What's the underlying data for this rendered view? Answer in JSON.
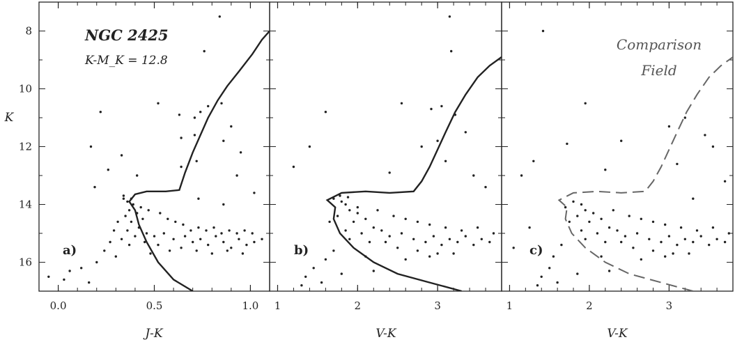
{
  "chart_data": [
    {
      "type": "scatter",
      "panel_label": "a)",
      "title": "NGC 2425",
      "subtitle": "K-M_K = 12.8",
      "xlabel": "J-K",
      "ylabel": "K",
      "xlim": [
        -0.1,
        1.1
      ],
      "ylim": [
        17,
        7
      ],
      "x_ticks": [
        "0.0",
        "0.5",
        "1.0"
      ],
      "x_tick_values": [
        0.0,
        0.5,
        1.0
      ],
      "y_ticks": [
        "8",
        "10",
        "12",
        "14",
        "16"
      ],
      "y_tick_values": [
        8,
        10,
        12,
        14,
        16
      ],
      "isochrone_style": "solid",
      "isochrone": [
        [
          0.7,
          17.0
        ],
        [
          0.6,
          16.6
        ],
        [
          0.52,
          16.0
        ],
        [
          0.46,
          15.3
        ],
        [
          0.42,
          14.7
        ],
        [
          0.4,
          14.2
        ],
        [
          0.37,
          13.9
        ],
        [
          0.4,
          13.65
        ],
        [
          0.46,
          13.55
        ],
        [
          0.56,
          13.55
        ],
        [
          0.63,
          13.5
        ],
        [
          0.66,
          12.9
        ],
        [
          0.7,
          12.2
        ],
        [
          0.74,
          11.6
        ],
        [
          0.78,
          11.0
        ],
        [
          0.83,
          10.4
        ],
        [
          0.88,
          9.9
        ],
        [
          0.94,
          9.4
        ],
        [
          1.01,
          8.8
        ],
        [
          1.06,
          8.3
        ],
        [
          1.1,
          8.0
        ]
      ],
      "points": [
        [
          0.84,
          7.5
        ],
        [
          0.76,
          8.7
        ],
        [
          0.52,
          10.5
        ],
        [
          0.22,
          10.8
        ],
        [
          0.63,
          10.9
        ],
        [
          0.71,
          11.0
        ],
        [
          0.74,
          10.8
        ],
        [
          0.78,
          10.6
        ],
        [
          0.85,
          10.5
        ],
        [
          0.9,
          11.3
        ],
        [
          0.64,
          11.7
        ],
        [
          0.71,
          11.6
        ],
        [
          0.86,
          11.8
        ],
        [
          0.17,
          12.0
        ],
        [
          0.33,
          12.3
        ],
        [
          0.72,
          12.5
        ],
        [
          0.95,
          12.2
        ],
        [
          0.26,
          12.8
        ],
        [
          0.41,
          13.0
        ],
        [
          0.64,
          12.7
        ],
        [
          0.93,
          13.0
        ],
        [
          0.73,
          13.8
        ],
        [
          0.86,
          14.0
        ],
        [
          0.19,
          13.4
        ],
        [
          1.02,
          13.6
        ],
        [
          0.34,
          13.8
        ],
        [
          0.36,
          13.9
        ],
        [
          0.39,
          14.0
        ],
        [
          0.37,
          14.2
        ],
        [
          0.41,
          14.3
        ],
        [
          0.35,
          14.4
        ],
        [
          0.44,
          14.5
        ],
        [
          0.31,
          14.6
        ],
        [
          0.38,
          14.6
        ],
        [
          0.42,
          14.8
        ],
        [
          0.36,
          14.9
        ],
        [
          0.29,
          14.9
        ],
        [
          0.46,
          15.0
        ],
        [
          0.4,
          15.1
        ],
        [
          0.5,
          15.1
        ],
        [
          0.33,
          15.2
        ],
        [
          0.55,
          15.0
        ],
        [
          0.27,
          15.3
        ],
        [
          0.45,
          15.3
        ],
        [
          0.6,
          15.2
        ],
        [
          0.37,
          15.4
        ],
        [
          0.52,
          15.4
        ],
        [
          0.66,
          15.1
        ],
        [
          0.7,
          15.3
        ],
        [
          0.74,
          15.2
        ],
        [
          0.78,
          15.4
        ],
        [
          0.82,
          15.1
        ],
        [
          0.86,
          15.3
        ],
        [
          0.9,
          15.5
        ],
        [
          0.94,
          15.2
        ],
        [
          0.98,
          15.4
        ],
        [
          1.02,
          15.3
        ],
        [
          1.06,
          15.2
        ],
        [
          0.24,
          15.6
        ],
        [
          0.3,
          15.8
        ],
        [
          0.48,
          15.7
        ],
        [
          0.58,
          15.6
        ],
        [
          0.64,
          15.5
        ],
        [
          0.72,
          15.6
        ],
        [
          0.8,
          15.7
        ],
        [
          0.88,
          15.6
        ],
        [
          0.96,
          15.7
        ],
        [
          0.2,
          16.0
        ],
        [
          0.12,
          16.2
        ],
        [
          0.06,
          16.3
        ],
        [
          0.03,
          16.6
        ],
        [
          -0.05,
          16.5
        ],
        [
          0.16,
          16.7
        ],
        [
          0.43,
          14.1
        ],
        [
          0.47,
          14.2
        ],
        [
          0.53,
          14.3
        ],
        [
          0.57,
          14.5
        ],
        [
          0.61,
          14.6
        ],
        [
          0.65,
          14.7
        ],
        [
          0.69,
          14.9
        ],
        [
          0.73,
          14.8
        ],
        [
          0.77,
          14.9
        ],
        [
          0.81,
          14.8
        ],
        [
          0.85,
          15.0
        ],
        [
          0.89,
          14.9
        ],
        [
          0.93,
          15.0
        ],
        [
          0.97,
          14.9
        ],
        [
          1.01,
          15.0
        ],
        [
          0.34,
          13.7
        ],
        [
          0.38,
          13.8
        ]
      ]
    },
    {
      "type": "scatter",
      "panel_label": "b)",
      "xlabel": "V-K",
      "xlim": [
        0.9,
        3.8
      ],
      "ylim": [
        17,
        7
      ],
      "x_ticks": [
        "1",
        "2",
        "3"
      ],
      "x_tick_values": [
        1,
        2,
        3
      ],
      "isochrone_style": "solid",
      "isochrone": [
        [
          3.3,
          17.0
        ],
        [
          2.9,
          16.7
        ],
        [
          2.5,
          16.4
        ],
        [
          2.2,
          16.0
        ],
        [
          1.95,
          15.5
        ],
        [
          1.78,
          15.0
        ],
        [
          1.7,
          14.5
        ],
        [
          1.72,
          14.1
        ],
        [
          1.62,
          13.85
        ],
        [
          1.8,
          13.6
        ],
        [
          2.1,
          13.55
        ],
        [
          2.4,
          13.6
        ],
        [
          2.7,
          13.55
        ],
        [
          2.8,
          13.2
        ],
        [
          2.9,
          12.7
        ],
        [
          3.0,
          12.1
        ],
        [
          3.1,
          11.5
        ],
        [
          3.22,
          10.8
        ],
        [
          3.35,
          10.2
        ],
        [
          3.5,
          9.6
        ],
        [
          3.65,
          9.2
        ],
        [
          3.8,
          8.9
        ]
      ],
      "points": [
        [
          3.15,
          7.5
        ],
        [
          3.17,
          8.7
        ],
        [
          2.55,
          10.5
        ],
        [
          1.6,
          10.8
        ],
        [
          2.92,
          10.7
        ],
        [
          3.05,
          10.6
        ],
        [
          3.22,
          10.9
        ],
        [
          3.35,
          11.5
        ],
        [
          3.0,
          11.8
        ],
        [
          2.8,
          12.0
        ],
        [
          1.4,
          12.0
        ],
        [
          1.2,
          12.7
        ],
        [
          3.1,
          12.5
        ],
        [
          3.45,
          13.0
        ],
        [
          2.4,
          12.9
        ],
        [
          3.6,
          13.4
        ],
        [
          1.7,
          13.8
        ],
        [
          1.8,
          13.9
        ],
        [
          1.85,
          14.0
        ],
        [
          1.9,
          14.2
        ],
        [
          2.0,
          14.3
        ],
        [
          1.75,
          14.4
        ],
        [
          2.1,
          14.5
        ],
        [
          1.65,
          14.6
        ],
        [
          1.95,
          14.6
        ],
        [
          2.2,
          14.8
        ],
        [
          1.85,
          14.9
        ],
        [
          2.3,
          14.9
        ],
        [
          2.05,
          15.0
        ],
        [
          2.4,
          15.1
        ],
        [
          2.55,
          15.0
        ],
        [
          2.7,
          15.2
        ],
        [
          1.9,
          15.2
        ],
        [
          2.15,
          15.3
        ],
        [
          2.35,
          15.3
        ],
        [
          2.85,
          15.3
        ],
        [
          2.95,
          15.1
        ],
        [
          3.05,
          15.4
        ],
        [
          3.15,
          15.2
        ],
        [
          3.25,
          15.3
        ],
        [
          3.35,
          15.1
        ],
        [
          3.45,
          15.4
        ],
        [
          3.55,
          15.2
        ],
        [
          3.65,
          15.3
        ],
        [
          2.5,
          15.5
        ],
        [
          2.75,
          15.6
        ],
        [
          3.0,
          15.7
        ],
        [
          1.7,
          15.6
        ],
        [
          1.6,
          15.9
        ],
        [
          2.1,
          15.8
        ],
        [
          2.6,
          15.9
        ],
        [
          2.9,
          15.8
        ],
        [
          3.2,
          15.7
        ],
        [
          1.45,
          16.2
        ],
        [
          1.35,
          16.5
        ],
        [
          1.3,
          16.8
        ],
        [
          1.55,
          16.7
        ],
        [
          1.8,
          16.4
        ],
        [
          2.2,
          16.3
        ],
        [
          2.0,
          14.1
        ],
        [
          2.25,
          14.2
        ],
        [
          2.45,
          14.4
        ],
        [
          2.6,
          14.5
        ],
        [
          2.75,
          14.6
        ],
        [
          2.9,
          14.7
        ],
        [
          3.1,
          14.8
        ],
        [
          3.3,
          14.9
        ],
        [
          3.5,
          14.8
        ],
        [
          3.7,
          15.0
        ],
        [
          1.78,
          13.7
        ],
        [
          1.88,
          13.75
        ]
      ]
    },
    {
      "type": "scatter",
      "panel_label": "c)",
      "title": "Comparison Field",
      "title_lines": [
        "Comparison",
        "Field"
      ],
      "xlabel": "V-K",
      "xlim": [
        0.9,
        3.8
      ],
      "ylim": [
        17,
        7
      ],
      "x_ticks": [
        "1",
        "2",
        "3"
      ],
      "x_tick_values": [
        1,
        2,
        3
      ],
      "isochrone_style": "dashed",
      "isochrone": [
        [
          3.3,
          17.0
        ],
        [
          2.9,
          16.7
        ],
        [
          2.5,
          16.4
        ],
        [
          2.2,
          16.0
        ],
        [
          1.95,
          15.5
        ],
        [
          1.78,
          15.0
        ],
        [
          1.7,
          14.5
        ],
        [
          1.72,
          14.1
        ],
        [
          1.62,
          13.85
        ],
        [
          1.8,
          13.6
        ],
        [
          2.1,
          13.55
        ],
        [
          2.4,
          13.6
        ],
        [
          2.7,
          13.55
        ],
        [
          2.8,
          13.2
        ],
        [
          2.9,
          12.7
        ],
        [
          3.0,
          12.1
        ],
        [
          3.1,
          11.5
        ],
        [
          3.22,
          10.8
        ],
        [
          3.35,
          10.2
        ],
        [
          3.5,
          9.6
        ],
        [
          3.65,
          9.2
        ],
        [
          3.8,
          8.9
        ]
      ],
      "points": [
        [
          1.42,
          8.0
        ],
        [
          1.95,
          10.5
        ],
        [
          1.72,
          11.9
        ],
        [
          2.4,
          11.8
        ],
        [
          3.0,
          11.3
        ],
        [
          3.2,
          11.0
        ],
        [
          3.45,
          11.6
        ],
        [
          3.55,
          12.0
        ],
        [
          1.3,
          12.5
        ],
        [
          2.2,
          12.8
        ],
        [
          3.1,
          12.6
        ],
        [
          3.7,
          13.2
        ],
        [
          3.3,
          13.8
        ],
        [
          1.8,
          13.9
        ],
        [
          1.9,
          14.0
        ],
        [
          1.95,
          14.2
        ],
        [
          2.05,
          14.3
        ],
        [
          1.85,
          14.4
        ],
        [
          2.15,
          14.5
        ],
        [
          1.75,
          14.6
        ],
        [
          2.0,
          14.6
        ],
        [
          2.25,
          14.8
        ],
        [
          1.9,
          14.9
        ],
        [
          2.35,
          14.9
        ],
        [
          2.1,
          15.0
        ],
        [
          2.45,
          15.1
        ],
        [
          2.6,
          15.0
        ],
        [
          2.75,
          15.2
        ],
        [
          1.95,
          15.2
        ],
        [
          2.2,
          15.3
        ],
        [
          2.4,
          15.3
        ],
        [
          2.9,
          15.3
        ],
        [
          3.0,
          15.1
        ],
        [
          3.1,
          15.4
        ],
        [
          3.2,
          15.2
        ],
        [
          3.3,
          15.3
        ],
        [
          3.4,
          15.1
        ],
        [
          3.5,
          15.4
        ],
        [
          3.6,
          15.2
        ],
        [
          3.7,
          15.3
        ],
        [
          2.55,
          15.5
        ],
        [
          2.8,
          15.6
        ],
        [
          3.05,
          15.7
        ],
        [
          1.65,
          15.4
        ],
        [
          1.55,
          15.8
        ],
        [
          2.15,
          15.8
        ],
        [
          2.65,
          15.9
        ],
        [
          2.95,
          15.8
        ],
        [
          3.25,
          15.7
        ],
        [
          1.5,
          16.2
        ],
        [
          1.4,
          16.5
        ],
        [
          1.35,
          16.8
        ],
        [
          1.6,
          16.7
        ],
        [
          1.85,
          16.4
        ],
        [
          2.25,
          16.3
        ],
        [
          1.7,
          14.1
        ],
        [
          2.3,
          14.2
        ],
        [
          2.5,
          14.4
        ],
        [
          2.65,
          14.5
        ],
        [
          2.8,
          14.6
        ],
        [
          2.95,
          14.7
        ],
        [
          3.15,
          14.8
        ],
        [
          3.35,
          14.9
        ],
        [
          3.55,
          14.8
        ],
        [
          3.75,
          15.0
        ],
        [
          1.25,
          14.8
        ],
        [
          1.15,
          13.0
        ],
        [
          1.05,
          15.5
        ]
      ]
    }
  ]
}
